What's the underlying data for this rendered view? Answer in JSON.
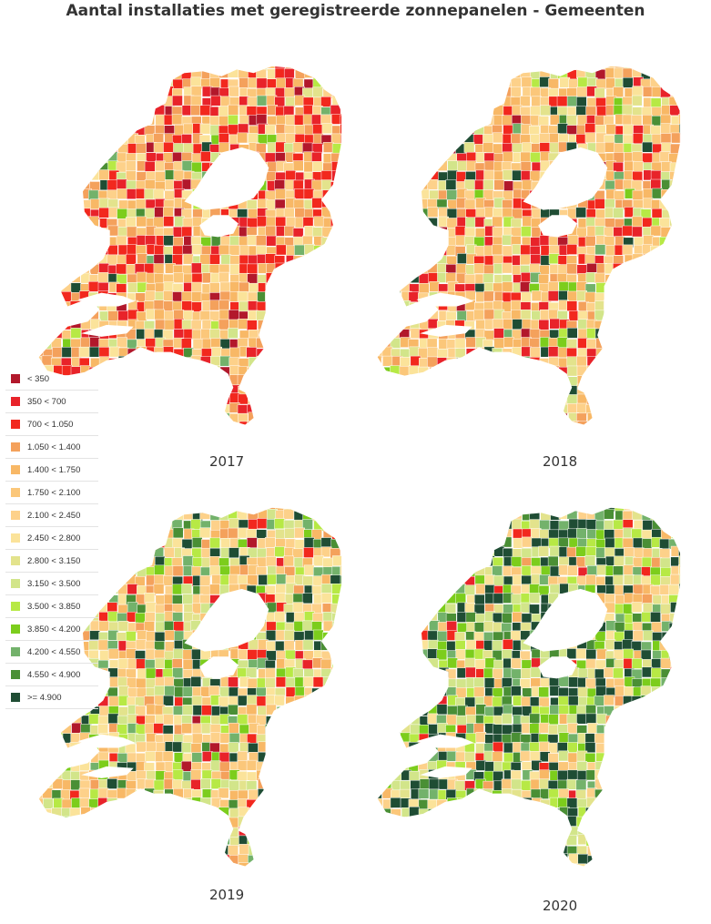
{
  "title": "Aantal installaties met geregistreerde zonnepanelen - Gemeenten",
  "legend": [
    {
      "label": "< 350",
      "color": "#b2182b"
    },
    {
      "label": "350 < 700",
      "color": "#e8232a"
    },
    {
      "label": "700 < 1.050",
      "color": "#f2281e"
    },
    {
      "label": "1.050 < 1.400",
      "color": "#f4a15c"
    },
    {
      "label": "1.400 < 1.750",
      "color": "#f8b866"
    },
    {
      "label": "1.750 < 2.100",
      "color": "#fbc77a"
    },
    {
      "label": "2.100 < 2.450",
      "color": "#fdd18a"
    },
    {
      "label": "2.450 < 2.800",
      "color": "#fbe39a"
    },
    {
      "label": "2.800 < 3.150",
      "color": "#e3e38c"
    },
    {
      "label": "3.150 < 3.500",
      "color": "#d2e58a"
    },
    {
      "label": "3.500 < 3.850",
      "color": "#b7e945"
    },
    {
      "label": "3.850 < 4.200",
      "color": "#7ccd1c"
    },
    {
      "label": "4.200 < 4.550",
      "color": "#73b26b"
    },
    {
      "label": "4.550 < 4.900",
      "color": "#4a8f35"
    },
    {
      "label": ">= 4.900",
      "color": "#1f4d34"
    }
  ],
  "maps": [
    {
      "year": "2017",
      "weights": [
        0.04,
        0.1,
        0.17,
        0.1,
        0.14,
        0.14,
        0.11,
        0.07,
        0.04,
        0.02,
        0.01,
        0.01,
        0.02,
        0.01,
        0.02
      ]
    },
    {
      "year": "2018",
      "weights": [
        0.02,
        0.06,
        0.08,
        0.09,
        0.14,
        0.15,
        0.13,
        0.09,
        0.08,
        0.05,
        0.02,
        0.02,
        0.02,
        0.01,
        0.04
      ]
    },
    {
      "year": "2019",
      "weights": [
        0.01,
        0.02,
        0.04,
        0.04,
        0.08,
        0.12,
        0.13,
        0.1,
        0.09,
        0.08,
        0.06,
        0.05,
        0.05,
        0.04,
        0.09
      ]
    },
    {
      "year": "2020",
      "weights": [
        0.0,
        0.01,
        0.02,
        0.02,
        0.03,
        0.05,
        0.07,
        0.07,
        0.08,
        0.09,
        0.09,
        0.07,
        0.08,
        0.07,
        0.24
      ]
    }
  ]
}
